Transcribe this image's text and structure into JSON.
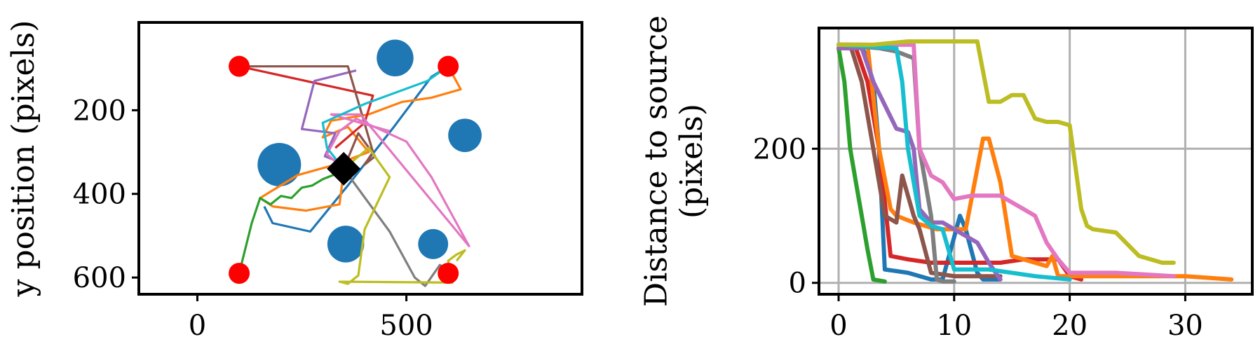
{
  "chart_data": [
    {
      "type": "scatter",
      "title": "",
      "xlabel": "",
      "ylabel": "y position (pixels)",
      "xlim": [
        -140,
        920
      ],
      "ylim": [
        -10,
        640
      ],
      "y_inverted": true,
      "xticks": [
        0,
        500
      ],
      "yticks": [
        200,
        400,
        600
      ],
      "grid": false,
      "obstacles": {
        "color": "#1f77b4",
        "circles": [
          {
            "x": 473,
            "y": 75,
            "r": 44
          },
          {
            "x": 640,
            "y": 260,
            "r": 40
          },
          {
            "x": 196,
            "y": 330,
            "r": 52
          },
          {
            "x": 355,
            "y": 520,
            "r": 44
          },
          {
            "x": 564,
            "y": 520,
            "r": 36
          }
        ]
      },
      "starts": {
        "color": "#ff0000",
        "points": [
          [
            100,
            95
          ],
          [
            600,
            95
          ],
          [
            100,
            590
          ],
          [
            600,
            590
          ]
        ]
      },
      "source": {
        "color": "#000000",
        "x": 350,
        "y": 340
      },
      "series": [
        {
          "color": "#1f77b4",
          "x": [
            600,
            560,
            470,
            360,
            270,
            180,
            160
          ],
          "y": [
            95,
            120,
            240,
            380,
            490,
            470,
            430
          ]
        },
        {
          "color": "#ff7f0e",
          "x": [
            600,
            630,
            560,
            490,
            410,
            320,
            300,
            360,
            410,
            330,
            240,
            150,
            180,
            260,
            340,
            350
          ],
          "y": [
            95,
            150,
            170,
            180,
            210,
            225,
            265,
            240,
            300,
            330,
            355,
            410,
            430,
            440,
            425,
            345
          ]
        },
        {
          "color": "#2ca02c",
          "x": [
            100,
            130,
            150,
            175,
            200,
            225,
            250,
            275,
            300,
            325,
            350
          ],
          "y": [
            590,
            470,
            410,
            425,
            405,
            410,
            385,
            380,
            365,
            355,
            340
          ]
        },
        {
          "color": "#d62728",
          "x": [
            100,
            420,
            400,
            330
          ],
          "y": [
            95,
            165,
            230,
            290
          ]
        },
        {
          "color": "#9467bd",
          "x": [
            380,
            280,
            250,
            330,
            305,
            355,
            350
          ],
          "y": [
            105,
            130,
            245,
            255,
            310,
            330,
            340
          ]
        },
        {
          "color": "#8c564b",
          "x": [
            100,
            360,
            420,
            400,
            425,
            385,
            350
          ],
          "y": [
            95,
            95,
            300,
            330,
            310,
            255,
            340
          ]
        },
        {
          "color": "#e377c2",
          "x": [
            460,
            320,
            390,
            650,
            560,
            500,
            380,
            340,
            310,
            350
          ],
          "y": [
            250,
            210,
            210,
            525,
            360,
            275,
            220,
            250,
            305,
            340
          ]
        },
        {
          "color": "#7f7f7f",
          "x": [
            350,
            460,
            520,
            545,
            580,
            610
          ],
          "y": [
            340,
            490,
            600,
            620,
            570,
            590
          ]
        },
        {
          "color": "#bcbd22",
          "x": [
            350,
            410,
            460,
            400,
            385,
            360,
            340,
            610,
            600,
            620,
            640,
            620
          ],
          "y": [
            340,
            290,
            360,
            485,
            595,
            615,
            610,
            612,
            560,
            545,
            535,
            560
          ]
        },
        {
          "color": "#17becf",
          "x": [
            600,
            550,
            400,
            300,
            310,
            350
          ],
          "y": [
            95,
            130,
            185,
            230,
            290,
            340
          ]
        }
      ]
    },
    {
      "type": "line",
      "title": "",
      "xlabel": "",
      "ylabel": "Distance to source (pixels)",
      "xlim": [
        -1.7,
        35.8
      ],
      "ylim": [
        -17,
        380
      ],
      "xticks": [
        0,
        10,
        20,
        30
      ],
      "yticks": [
        0,
        200
      ],
      "grid": true,
      "series": [
        {
          "color": "#2ca02c",
          "x": [
            0,
            0.5,
            1,
            1.5,
            2,
            2.5,
            3,
            4
          ],
          "y": [
            350,
            300,
            200,
            150,
            100,
            50,
            5,
            2
          ]
        },
        {
          "color": "#1f77b4",
          "x": [
            0,
            2,
            3,
            3.5,
            4,
            6,
            8,
            9,
            10.5,
            11,
            12,
            12.5,
            14
          ],
          "y": [
            355,
            355,
            300,
            200,
            20,
            15,
            5,
            5,
            100,
            80,
            15,
            5,
            5
          ]
        },
        {
          "color": "#d62728",
          "x": [
            0,
            1.5,
            2.5,
            3.5,
            4.5,
            6,
            8,
            10,
            14,
            16,
            19,
            20,
            21
          ],
          "y": [
            350,
            350,
            300,
            200,
            40,
            35,
            30,
            30,
            30,
            35,
            35,
            10,
            5
          ]
        },
        {
          "color": "#ff7f0e",
          "x": [
            0,
            2.5,
            3.5,
            4.5,
            5,
            6.5,
            8.5,
            10,
            11,
            12.5,
            13,
            14,
            15,
            18,
            18.5,
            19,
            22,
            30,
            34
          ],
          "y": [
            355,
            355,
            200,
            110,
            100,
            90,
            80,
            80,
            80,
            215,
            215,
            150,
            40,
            25,
            40,
            10,
            10,
            10,
            5
          ]
        },
        {
          "color": "#8c564b",
          "x": [
            0,
            1,
            2,
            3,
            4,
            5,
            5.5,
            6.5,
            7,
            8,
            10,
            14
          ],
          "y": [
            355,
            355,
            300,
            200,
            100,
            90,
            160,
            100,
            80,
            15,
            10,
            10
          ]
        },
        {
          "color": "#9467bd",
          "x": [
            0,
            2,
            3,
            5,
            6,
            6.5,
            7,
            8,
            9,
            12,
            13,
            14
          ],
          "y": [
            350,
            350,
            300,
            230,
            225,
            200,
            110,
            90,
            90,
            60,
            30,
            5
          ]
        },
        {
          "color": "#7f7f7f",
          "x": [
            0,
            3.5,
            5,
            6.5,
            7,
            8,
            8.5,
            9,
            10
          ],
          "y": [
            355,
            350,
            345,
            335,
            200,
            100,
            5,
            2,
            2
          ]
        },
        {
          "color": "#e377c2",
          "x": [
            0,
            6.5,
            7,
            8,
            9,
            10,
            11.5,
            14,
            16,
            17,
            18,
            19,
            20,
            24,
            29
          ],
          "y": [
            355,
            355,
            200,
            160,
            150,
            125,
            130,
            130,
            110,
            100,
            60,
            35,
            15,
            15,
            10
          ]
        },
        {
          "color": "#17becf",
          "x": [
            0,
            5,
            5.5,
            6,
            7,
            8,
            9,
            10,
            13,
            17,
            20
          ],
          "y": [
            355,
            350,
            300,
            200,
            100,
            85,
            80,
            20,
            20,
            10,
            5
          ]
        },
        {
          "color": "#bcbd22",
          "x": [
            0,
            3,
            6,
            8,
            10,
            12,
            13,
            14,
            15,
            16,
            17,
            18,
            19,
            20,
            21,
            21.5,
            22,
            24,
            26,
            28,
            29
          ],
          "y": [
            355,
            355,
            360,
            360,
            360,
            360,
            270,
            270,
            280,
            280,
            245,
            240,
            240,
            235,
            110,
            85,
            80,
            75,
            40,
            30,
            30
          ]
        }
      ]
    }
  ]
}
